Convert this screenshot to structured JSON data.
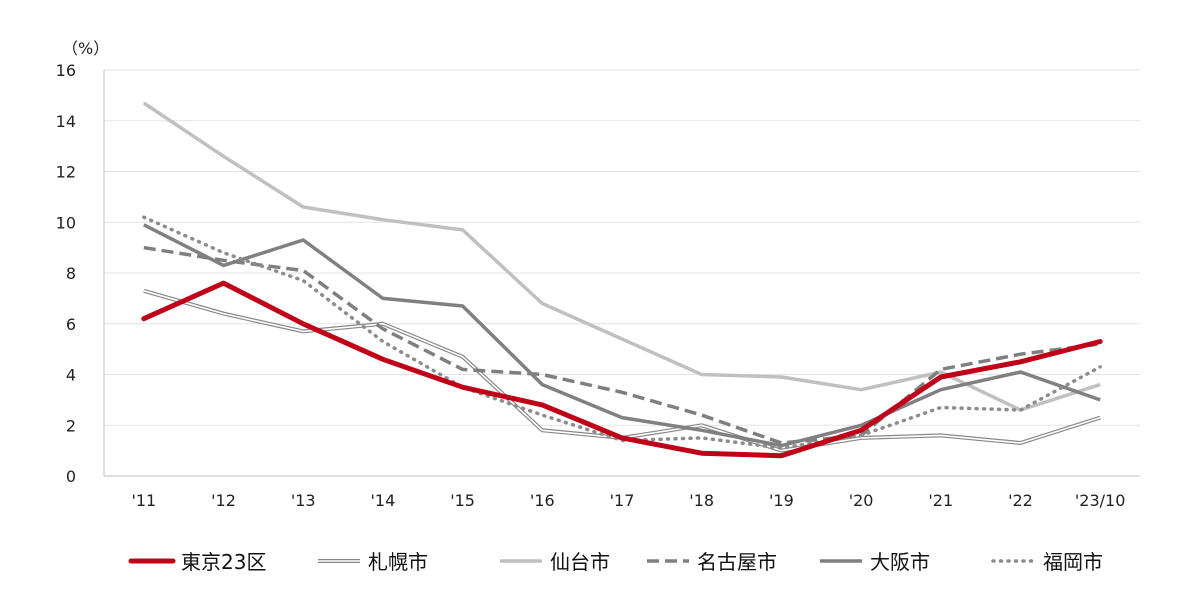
{
  "chart_data": {
    "type": "line",
    "unit_label": "（%）",
    "categories": [
      "'11",
      "'12",
      "'13",
      "'14",
      "'15",
      "'16",
      "'17",
      "'18",
      "'19",
      "'20",
      "'21",
      "'22",
      "'23/10"
    ],
    "ylim": [
      0,
      16
    ],
    "yticks": [
      0,
      2,
      4,
      6,
      8,
      10,
      12,
      14,
      16
    ],
    "grid": true,
    "legend_position": "bottom",
    "series": [
      {
        "name": "札幌市",
        "color": "#888888",
        "style": "double",
        "values": [
          7.3,
          6.4,
          5.7,
          6.0,
          4.7,
          1.8,
          1.5,
          2.0,
          1.0,
          1.5,
          1.6,
          1.3,
          2.3
        ]
      },
      {
        "name": "仙台市",
        "color": "#c0c0c0",
        "style": "solid",
        "values": [
          14.7,
          12.6,
          10.6,
          10.1,
          9.7,
          6.8,
          5.4,
          4.0,
          3.9,
          3.4,
          4.1,
          2.6,
          3.6
        ]
      },
      {
        "name": "名古屋市",
        "color": "#7f7f7f",
        "style": "dashed",
        "values": [
          9.0,
          8.5,
          8.1,
          5.8,
          4.2,
          4.0,
          3.3,
          2.4,
          1.3,
          1.6,
          4.2,
          4.8,
          5.2
        ]
      },
      {
        "name": "大阪市",
        "color": "#808080",
        "style": "solid",
        "values": [
          9.9,
          8.3,
          9.3,
          7.0,
          6.7,
          3.6,
          2.3,
          1.8,
          1.2,
          2.0,
          3.4,
          4.1,
          3.0
        ]
      },
      {
        "name": "福岡市",
        "color": "#8c8c8c",
        "style": "dotted",
        "values": [
          10.2,
          8.8,
          7.7,
          5.3,
          3.5,
          2.4,
          1.4,
          1.5,
          1.1,
          1.6,
          2.7,
          2.6,
          4.3
        ]
      },
      {
        "name": "東京23区",
        "color": "#c00018",
        "style": "bold",
        "values": [
          6.2,
          7.6,
          6.0,
          4.6,
          3.5,
          2.8,
          1.5,
          0.9,
          0.8,
          1.8,
          3.9,
          4.5,
          5.3
        ]
      }
    ],
    "legend_order": [
      "東京23区",
      "札幌市",
      "仙台市",
      "名古屋市",
      "大阪市",
      "福岡市"
    ]
  }
}
